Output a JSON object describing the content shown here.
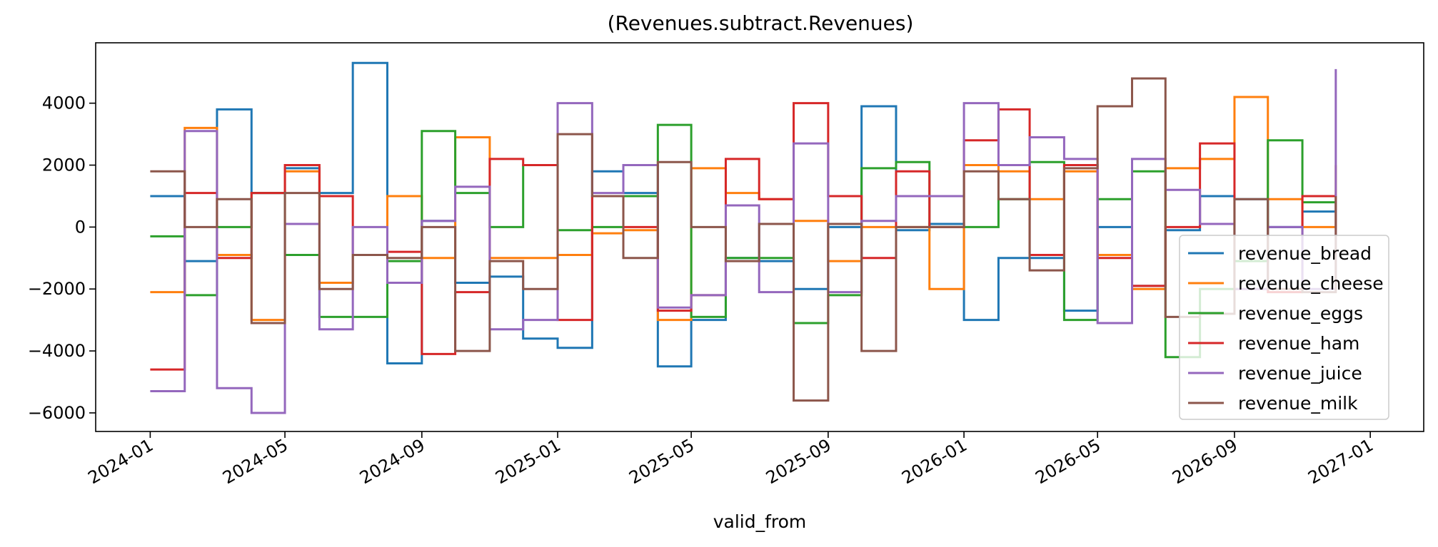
{
  "chart_data": {
    "type": "line",
    "step": "post",
    "title": "(Revenues.subtract.Revenues)",
    "xlabel": "valid_from",
    "ylabel": "",
    "x_ticks": [
      "2024-01",
      "2024-05",
      "2024-09",
      "2025-01",
      "2025-05",
      "2025-09",
      "2026-01",
      "2026-05",
      "2026-09",
      "2027-01"
    ],
    "y_ticks": [
      4000,
      2000,
      0,
      -2000,
      -4000,
      -6000
    ],
    "y_tick_labels": [
      "4000",
      "2000",
      "0",
      "−2000",
      "−4000",
      "−6000"
    ],
    "xlim": [
      "2023-11-13",
      "2027-02-18"
    ],
    "ylim": [
      -6600,
      5950
    ],
    "grid": false,
    "legend_position": "lower-right",
    "x": [
      "2024-01",
      "2024-02",
      "2024-03",
      "2024-04",
      "2024-05",
      "2024-06",
      "2024-07",
      "2024-08",
      "2024-09",
      "2024-10",
      "2024-11",
      "2024-12",
      "2025-01",
      "2025-02",
      "2025-03",
      "2025-04",
      "2025-05",
      "2025-06",
      "2025-07",
      "2025-08",
      "2025-09",
      "2025-10",
      "2025-11",
      "2025-12",
      "2026-01",
      "2026-02",
      "2026-03",
      "2026-04",
      "2026-05",
      "2026-06",
      "2026-07",
      "2026-08",
      "2026-09",
      "2026-10",
      "2026-11",
      "2026-12"
    ],
    "series": [
      {
        "name": "revenue_bread",
        "color": "#1f77b4",
        "values": [
          1000,
          -1100,
          3800,
          1100,
          1900,
          1100,
          5300,
          -4400,
          200,
          -1800,
          -1600,
          -3600,
          -3900,
          1800,
          1100,
          -4500,
          -3000,
          -1000,
          -1100,
          -2000,
          0,
          3900,
          -100,
          100,
          -3000,
          -1000,
          -1000,
          -2700,
          0,
          -1900,
          -100,
          1000,
          900,
          0,
          500,
          800
        ]
      },
      {
        "name": "revenue_cheese",
        "color": "#ff7f0e",
        "values": [
          -2100,
          3200,
          -900,
          -3000,
          1800,
          -1800,
          -900,
          1000,
          -1000,
          2900,
          -1000,
          -1000,
          -900,
          -200,
          -100,
          -3000,
          1900,
          1100,
          900,
          200,
          -1100,
          0,
          0,
          -2000,
          2000,
          1800,
          900,
          1800,
          -900,
          -2000,
          1900,
          2200,
          4200,
          900,
          0,
          2000
        ]
      },
      {
        "name": "revenue_eggs",
        "color": "#2ca02c",
        "values": [
          -300,
          -2200,
          0,
          1100,
          -900,
          -2900,
          -2900,
          -1100,
          3100,
          1100,
          0,
          2000,
          -100,
          0,
          1000,
          3300,
          -2900,
          -1000,
          -1000,
          -3100,
          -2200,
          1900,
          2100,
          0,
          0,
          900,
          2100,
          -3000,
          900,
          1800,
          -4200,
          -2000,
          -1100,
          2800,
          800,
          800
        ]
      },
      {
        "name": "revenue_ham",
        "color": "#d62728",
        "values": [
          -4600,
          1100,
          -1000,
          1100,
          2000,
          1000,
          -900,
          -800,
          -4100,
          -2100,
          2200,
          2000,
          -3000,
          1000,
          0,
          -2700,
          -2200,
          2200,
          900,
          4000,
          1000,
          -1000,
          1800,
          0,
          2800,
          3800,
          -900,
          2000,
          -1000,
          -1900,
          0,
          2700,
          -2000,
          -2100,
          1000,
          1000
        ]
      },
      {
        "name": "revenue_juice",
        "color": "#9467bd",
        "values": [
          -5300,
          3100,
          -5200,
          -6000,
          100,
          -3300,
          0,
          -1800,
          200,
          1300,
          -3300,
          -3000,
          4000,
          1100,
          2000,
          -2600,
          -2200,
          700,
          -2100,
          2700,
          -2100,
          200,
          1000,
          1000,
          4000,
          2000,
          2900,
          2200,
          -3100,
          2200,
          1200,
          100,
          -2000,
          0,
          -2000,
          5100
        ]
      },
      {
        "name": "revenue_milk",
        "color": "#8c564b",
        "values": [
          1800,
          0,
          900,
          -3100,
          1100,
          -2000,
          -900,
          -1000,
          0,
          -4000,
          -1100,
          -2000,
          3000,
          1000,
          -1000,
          2100,
          0,
          -1100,
          100,
          -5600,
          100,
          -4000,
          0,
          0,
          1800,
          900,
          -1400,
          1900,
          3900,
          4800,
          -2900,
          -2800,
          900,
          -2000,
          -2100,
          1000
        ]
      }
    ]
  }
}
